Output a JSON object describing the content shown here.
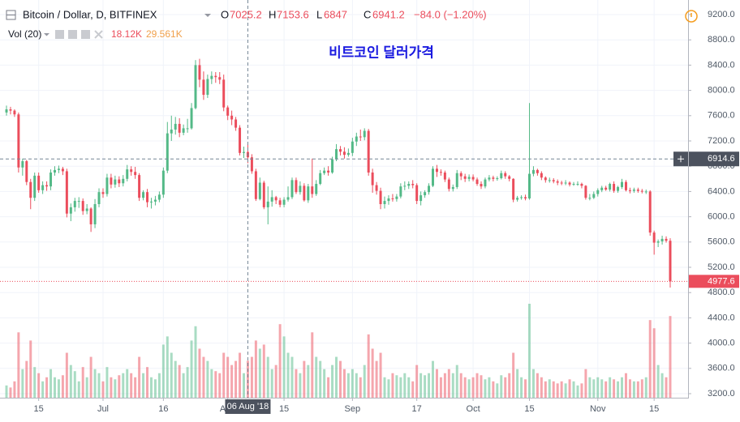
{
  "chart_data": {
    "type": "candlestick",
    "symbol": "Bitcoin / Dollar, D, BITFINEX",
    "ohlc_prefixes": [
      "O",
      "H",
      "L",
      "C"
    ],
    "change_label": "−84.0 (−1.20%)",
    "volume_title": "Vol (20)",
    "volume_value_label": "18.12K",
    "volume_ma_label": "29.561K",
    "annotation": "비트코인 달러가격",
    "crosshair_index": 60,
    "crosshair_x_label": "06 Aug '18",
    "crosshair_y": 6914.6,
    "up_color": "#53b987",
    "down_color": "#eb4d5c",
    "grid": true,
    "ylim": [
      3200,
      9200
    ],
    "yticks": [
      {
        "value": 3200,
        "label": "3200.0"
      },
      {
        "value": 3600,
        "label": "3600.0"
      },
      {
        "value": 4000,
        "label": "4000.0"
      },
      {
        "value": 4400,
        "label": "4400.0"
      },
      {
        "value": 4800,
        "label": "4800.0"
      },
      {
        "value": 5200,
        "label": "5200.0"
      },
      {
        "value": 5600,
        "label": "5600.0"
      },
      {
        "value": 6000,
        "label": "6000.0"
      },
      {
        "value": 6400,
        "label": "6400.0"
      },
      {
        "value": 6800,
        "label": "6800.0"
      },
      {
        "value": 7200,
        "label": "7200.0"
      },
      {
        "value": 7600,
        "label": "7600.0"
      },
      {
        "value": 8000,
        "label": "8000.0"
      },
      {
        "value": 8400,
        "label": "8400.0"
      },
      {
        "value": 8800,
        "label": "8800.0"
      },
      {
        "value": 9200,
        "label": "9200.0"
      }
    ],
    "xticks": [
      {
        "value": "2018-06-15",
        "label": "15"
      },
      {
        "value": "2018-07-01",
        "label": "Jul"
      },
      {
        "value": "2018-07-16",
        "label": "16"
      },
      {
        "value": "2018-08-01",
        "label": "Aug"
      },
      {
        "value": "2018-08-15",
        "label": "15"
      },
      {
        "value": "2018-09-01",
        "label": "Sep"
      },
      {
        "value": "2018-09-17",
        "label": "17"
      },
      {
        "value": "2018-10-01",
        "label": "Oct"
      },
      {
        "value": "2018-10-15",
        "label": "15"
      },
      {
        "value": "2018-11-01",
        "label": "Nov"
      },
      {
        "value": "2018-11-15",
        "label": "15"
      }
    ],
    "x": [
      "2018-06-07",
      "2018-06-08",
      "2018-06-09",
      "2018-06-10",
      "2018-06-11",
      "2018-06-12",
      "2018-06-13",
      "2018-06-14",
      "2018-06-15",
      "2018-06-16",
      "2018-06-17",
      "2018-06-18",
      "2018-06-19",
      "2018-06-20",
      "2018-06-21",
      "2018-06-22",
      "2018-06-23",
      "2018-06-24",
      "2018-06-25",
      "2018-06-26",
      "2018-06-27",
      "2018-06-28",
      "2018-06-29",
      "2018-06-30",
      "2018-07-01",
      "2018-07-02",
      "2018-07-03",
      "2018-07-04",
      "2018-07-05",
      "2018-07-06",
      "2018-07-07",
      "2018-07-08",
      "2018-07-09",
      "2018-07-10",
      "2018-07-11",
      "2018-07-12",
      "2018-07-13",
      "2018-07-14",
      "2018-07-15",
      "2018-07-16",
      "2018-07-17",
      "2018-07-18",
      "2018-07-19",
      "2018-07-20",
      "2018-07-21",
      "2018-07-22",
      "2018-07-23",
      "2018-07-24",
      "2018-07-25",
      "2018-07-26",
      "2018-07-27",
      "2018-07-28",
      "2018-07-29",
      "2018-07-30",
      "2018-07-31",
      "2018-08-01",
      "2018-08-02",
      "2018-08-03",
      "2018-08-04",
      "2018-08-05",
      "2018-08-06",
      "2018-08-07",
      "2018-08-08",
      "2018-08-09",
      "2018-08-10",
      "2018-08-11",
      "2018-08-12",
      "2018-08-13",
      "2018-08-14",
      "2018-08-15",
      "2018-08-16",
      "2018-08-17",
      "2018-08-18",
      "2018-08-19",
      "2018-08-20",
      "2018-08-21",
      "2018-08-22",
      "2018-08-23",
      "2018-08-24",
      "2018-08-25",
      "2018-08-26",
      "2018-08-27",
      "2018-08-28",
      "2018-08-29",
      "2018-08-30",
      "2018-08-31",
      "2018-09-01",
      "2018-09-02",
      "2018-09-03",
      "2018-09-04",
      "2018-09-05",
      "2018-09-06",
      "2018-09-07",
      "2018-09-08",
      "2018-09-09",
      "2018-09-10",
      "2018-09-11",
      "2018-09-12",
      "2018-09-13",
      "2018-09-14",
      "2018-09-15",
      "2018-09-16",
      "2018-09-17",
      "2018-09-18",
      "2018-09-19",
      "2018-09-20",
      "2018-09-21",
      "2018-09-22",
      "2018-09-23",
      "2018-09-24",
      "2018-09-25",
      "2018-09-26",
      "2018-09-27",
      "2018-09-28",
      "2018-09-29",
      "2018-09-30",
      "2018-10-01",
      "2018-10-02",
      "2018-10-03",
      "2018-10-04",
      "2018-10-05",
      "2018-10-06",
      "2018-10-07",
      "2018-10-08",
      "2018-10-09",
      "2018-10-10",
      "2018-10-11",
      "2018-10-12",
      "2018-10-13",
      "2018-10-14",
      "2018-10-15",
      "2018-10-16",
      "2018-10-17",
      "2018-10-18",
      "2018-10-19",
      "2018-10-20",
      "2018-10-21",
      "2018-10-22",
      "2018-10-23",
      "2018-10-24",
      "2018-10-25",
      "2018-10-26",
      "2018-10-27",
      "2018-10-28",
      "2018-10-29",
      "2018-10-30",
      "2018-10-31",
      "2018-11-01",
      "2018-11-02",
      "2018-11-03",
      "2018-11-04",
      "2018-11-05",
      "2018-11-06",
      "2018-11-07",
      "2018-11-08",
      "2018-11-09",
      "2018-11-10",
      "2018-11-11",
      "2018-11-12",
      "2018-11-13",
      "2018-11-14",
      "2018-11-15",
      "2018-11-16",
      "2018-11-17",
      "2018-11-18",
      "2018-11-19"
    ],
    "open": [
      7650,
      7700,
      7680,
      7620,
      6780,
      6880,
      6550,
      6300,
      6650,
      6420,
      6500,
      6480,
      6700,
      6740,
      6760,
      6720,
      6050,
      6150,
      6250,
      6250,
      6090,
      6130,
      5880,
      6200,
      6390,
      6360,
      6620,
      6510,
      6590,
      6530,
      6600,
      6750,
      6710,
      6660,
      6300,
      6390,
      6230,
      6240,
      6270,
      6350,
      6730,
      7320,
      7380,
      7470,
      7330,
      7400,
      7400,
      7720,
      8400,
      8170,
      7930,
      8180,
      8230,
      8210,
      8170,
      7730,
      7600,
      7540,
      7410,
      7010,
      7025.2,
      6941.2,
      6720,
      6280,
      6540,
      6150,
      6240,
      6310,
      6260,
      6190,
      6270,
      6310,
      6580,
      6390,
      6490,
      6260,
      6480,
      6360,
      6520,
      6690,
      6730,
      6700,
      6910,
      7070,
      7030,
      6980,
      7010,
      7190,
      7270,
      7260,
      7360,
      6700,
      6500,
      6410,
      6200,
      6250,
      6290,
      6280,
      6320,
      6480,
      6490,
      6520,
      6500,
      6250,
      6340,
      6390,
      6490,
      6760,
      6710,
      6700,
      6590,
      6440,
      6470,
      6690,
      6640,
      6600,
      6630,
      6590,
      6520,
      6480,
      6590,
      6620,
      6600,
      6610,
      6690,
      6640,
      6600,
      6270,
      6300,
      6310,
      6290,
      6680,
      6740,
      6690,
      6620,
      6580,
      6580,
      6560,
      6540,
      6530,
      6540,
      6510,
      6520,
      6520,
      6490,
      6300,
      6300,
      6360,
      6420,
      6460,
      6430,
      6520,
      6410,
      6470,
      6550,
      6420,
      6410,
      6430,
      6410,
      6400,
      6400,
      5750,
      5590,
      5610,
      5650,
      5620
    ],
    "high": [
      7760,
      7740,
      7700,
      7650,
      6920,
      6900,
      6600,
      6700,
      6700,
      6560,
      6560,
      6750,
      6800,
      6810,
      6790,
      6760,
      6210,
      6300,
      6310,
      6290,
      6200,
      6150,
      6280,
      6450,
      6450,
      6680,
      6680,
      6650,
      6640,
      6660,
      6820,
      6800,
      6790,
      6690,
      6420,
      6440,
      6300,
      6330,
      6400,
      6780,
      7500,
      7600,
      7580,
      7560,
      7460,
      7550,
      7800,
      8480,
      8500,
      8300,
      8250,
      8300,
      8290,
      8290,
      8250,
      7760,
      7680,
      7580,
      7450,
      7110,
      7153.6,
      6990,
      6760,
      6620,
      6570,
      6480,
      6420,
      6330,
      6300,
      6310,
      6480,
      6620,
      6620,
      6560,
      6530,
      6520,
      6920,
      6580,
      6740,
      6780,
      6800,
      6950,
      7150,
      7120,
      7100,
      7080,
      7250,
      7330,
      7380,
      7400,
      7390,
      6760,
      6550,
      6460,
      6320,
      6340,
      6360,
      6360,
      6530,
      6560,
      6560,
      6580,
      6530,
      6400,
      6420,
      6530,
      6800,
      6820,
      6750,
      6730,
      6620,
      6510,
      6740,
      6720,
      6680,
      6670,
      6670,
      6620,
      6560,
      6620,
      6660,
      6650,
      6640,
      6730,
      6720,
      6660,
      6610,
      6330,
      6340,
      6350,
      7800,
      6800,
      6760,
      6720,
      6640,
      6620,
      6610,
      6590,
      6570,
      6580,
      6560,
      6550,
      6560,
      6540,
      6500,
      6360,
      6400,
      6450,
      6490,
      6490,
      6540,
      6560,
      6490,
      6600,
      6580,
      6460,
      6460,
      6460,
      6440,
      6430,
      6420,
      5780,
      5640,
      5700,
      5690,
      5660
    ],
    "low": [
      7600,
      7620,
      7580,
      6700,
      6650,
      6500,
      6120,
      6250,
      6380,
      6360,
      6410,
      6420,
      6650,
      6690,
      6660,
      5990,
      5930,
      6080,
      6140,
      6030,
      6040,
      5760,
      5820,
      6150,
      6300,
      6320,
      6450,
      6460,
      6470,
      6480,
      6560,
      6650,
      6600,
      6250,
      6260,
      6150,
      6130,
      6180,
      6230,
      6300,
      6690,
      7200,
      7300,
      7260,
      7290,
      7330,
      7380,
      7700,
      8050,
      7850,
      7880,
      8100,
      8120,
      8100,
      7670,
      7530,
      7450,
      7360,
      6970,
      6930,
      6847,
      6680,
      6250,
      6260,
      6120,
      5880,
      6160,
      6200,
      6150,
      6150,
      6240,
      6280,
      6360,
      6350,
      6240,
      6220,
      6300,
      6330,
      6500,
      6660,
      6650,
      6680,
      6880,
      6970,
      6920,
      6950,
      6960,
      7120,
      7200,
      7210,
      6650,
      6380,
      6350,
      6120,
      6130,
      6190,
      6240,
      6240,
      6290,
      6420,
      6440,
      6450,
      6200,
      6180,
      6300,
      6350,
      6470,
      6630,
      6650,
      6550,
      6400,
      6400,
      6440,
      6580,
      6550,
      6560,
      6560,
      6490,
      6440,
      6450,
      6560,
      6560,
      6570,
      6590,
      6600,
      6560,
      6230,
      6240,
      6270,
      6260,
      6270,
      6640,
      6650,
      6580,
      6540,
      6540,
      6530,
      6500,
      6500,
      6500,
      6480,
      6490,
      6490,
      6450,
      6270,
      6260,
      6280,
      6320,
      6390,
      6410,
      6400,
      6380,
      6380,
      6440,
      6400,
      6370,
      6380,
      6380,
      6370,
      6360,
      5700,
      5400,
      5520,
      5560,
      5590,
      4880
    ],
    "close": [
      7700,
      7680,
      7620,
      6780,
      6880,
      6550,
      6300,
      6650,
      6420,
      6500,
      6480,
      6700,
      6740,
      6760,
      6720,
      6050,
      6150,
      6250,
      6250,
      6090,
      6130,
      5880,
      6200,
      6390,
      6360,
      6620,
      6510,
      6590,
      6530,
      6600,
      6750,
      6710,
      6660,
      6300,
      6390,
      6230,
      6240,
      6270,
      6350,
      6730,
      7320,
      7380,
      7470,
      7330,
      7400,
      7400,
      7720,
      8400,
      8170,
      7930,
      8180,
      8230,
      8210,
      8170,
      7730,
      7600,
      7540,
      7410,
      7010,
      7025.2,
      6941.2,
      6720,
      6280,
      6540,
      6150,
      6240,
      6310,
      6260,
      6190,
      6270,
      6310,
      6580,
      6390,
      6490,
      6260,
      6480,
      6360,
      6520,
      6690,
      6730,
      6700,
      6910,
      7070,
      7030,
      6980,
      7010,
      7190,
      7270,
      7260,
      7360,
      6700,
      6500,
      6410,
      6200,
      6250,
      6290,
      6280,
      6320,
      6480,
      6490,
      6520,
      6500,
      6250,
      6340,
      6390,
      6490,
      6760,
      6710,
      6700,
      6590,
      6440,
      6470,
      6690,
      6640,
      6600,
      6630,
      6590,
      6520,
      6480,
      6590,
      6620,
      6600,
      6610,
      6690,
      6640,
      6600,
      6270,
      6300,
      6310,
      6290,
      6680,
      6740,
      6690,
      6620,
      6580,
      6580,
      6560,
      6540,
      6530,
      6540,
      6510,
      6520,
      6520,
      6490,
      6300,
      6300,
      6360,
      6420,
      6460,
      6430,
      6520,
      6410,
      6470,
      6550,
      6420,
      6410,
      6430,
      6410,
      6400,
      6400,
      5750,
      5590,
      5610,
      5650,
      5620,
      4977.6
    ],
    "volume": [
      6,
      5,
      8,
      32,
      14,
      18,
      28,
      15,
      12,
      8,
      10,
      14,
      10,
      9,
      11,
      22,
      16,
      13,
      8,
      15,
      10,
      20,
      14,
      12,
      8,
      15,
      10,
      9,
      11,
      12,
      14,
      12,
      10,
      20,
      12,
      15,
      10,
      9,
      12,
      26,
      30,
      22,
      18,
      16,
      12,
      15,
      28,
      35,
      24,
      20,
      18,
      14,
      13,
      12,
      22,
      20,
      16,
      18,
      22,
      12,
      18.12,
      20,
      28,
      24,
      26,
      20,
      14,
      16,
      36,
      30,
      22,
      20,
      14,
      12,
      18,
      16,
      32,
      20,
      18,
      14,
      10,
      16,
      20,
      18,
      14,
      12,
      14,
      12,
      10,
      16,
      31,
      24,
      18,
      22,
      10,
      9,
      12,
      11,
      10,
      12,
      10,
      8,
      16,
      12,
      11,
      12,
      18,
      14,
      10,
      12,
      14,
      12,
      16,
      12,
      10,
      9,
      10,
      12,
      11,
      9,
      10,
      8,
      7,
      11,
      10,
      12,
      22,
      14,
      10,
      9,
      46,
      14,
      12,
      10,
      8,
      9,
      8,
      7,
      8,
      7,
      9,
      8,
      6,
      7,
      14,
      10,
      9,
      10,
      9,
      8,
      10,
      9,
      8,
      10,
      12,
      9,
      8,
      8,
      9,
      10,
      38,
      34,
      16,
      12,
      10,
      40
    ]
  }
}
